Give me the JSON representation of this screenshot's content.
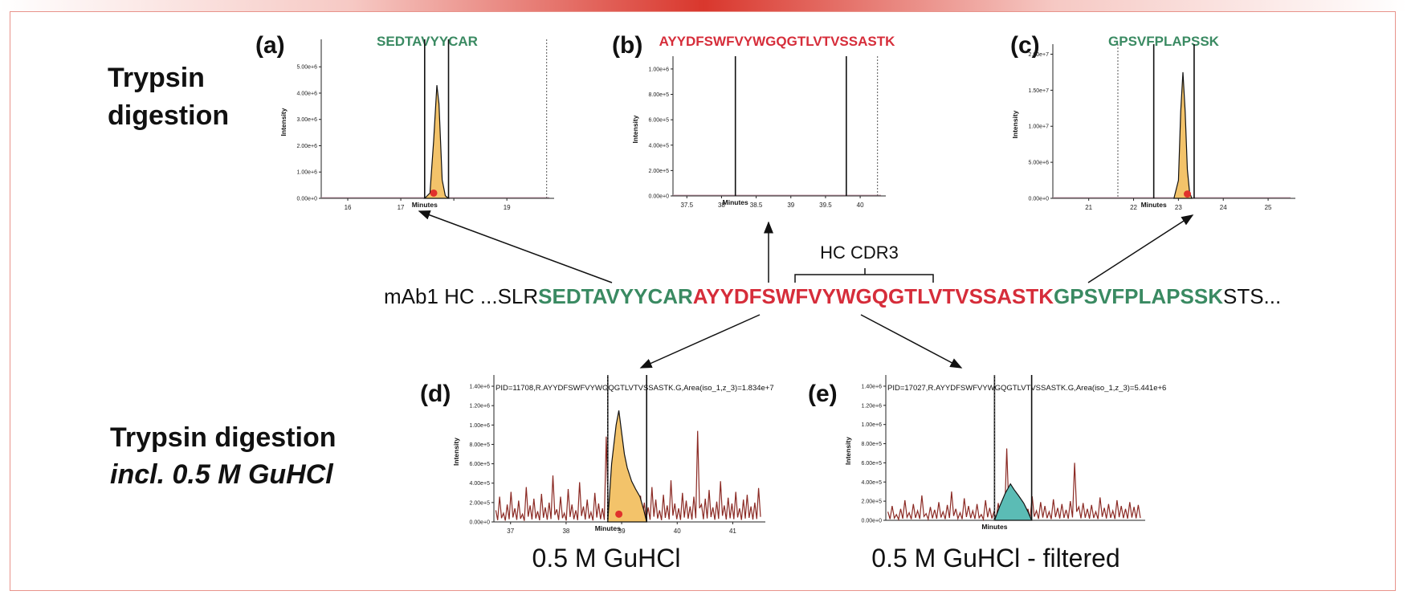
{
  "colors": {
    "green": "#3a8a62",
    "red": "#d62d3a",
    "orange_fill": "#f3c36a",
    "teal_fill": "#5bbcb5",
    "noise": "#8b2a24",
    "frame": "#e8938b"
  },
  "sections": {
    "top_title": [
      "Trypsin",
      "digestion"
    ],
    "bottom_title": "Trypsin digestion",
    "bottom_subtitle": "incl. 0.5 M GuHCl"
  },
  "sequence": {
    "prefix": "mAb1 HC ...SLR",
    "seg1": "SEDTAVYYCAR",
    "seg2": "AYYDFSWFVYWGQGTLVTVSSASTK",
    "seg3": "GPSVFPLAPSSK",
    "suffix": "STS...",
    "cdr_label": "HC CDR3"
  },
  "chart_data": [
    {
      "id": "a",
      "panel_label": "(a)",
      "type": "line",
      "title": "SEDTAVYYCAR",
      "title_color": "#3a8a62",
      "xlabel": "Minutes",
      "ylabel": "Intensity",
      "xlim": [
        15.5,
        19.8
      ],
      "ylim": [
        0,
        5800000
      ],
      "x_ticks": [
        16,
        17,
        18,
        19
      ],
      "x_tick_labels": [
        "16",
        "17",
        "",
        "19"
      ],
      "y_ticks": [
        0,
        1000000,
        2000000,
        3000000,
        4000000,
        5000000
      ],
      "y_tick_labels": [
        "0.00e+0",
        "1.00e+6",
        "2.00e+6",
        "3.00e+6",
        "4.00e+6",
        "5.00e+6"
      ],
      "integration_bounds": [
        17.45,
        17.9
      ],
      "dotted_lines": [
        19.75
      ],
      "peak": {
        "x": [
          17.45,
          17.55,
          17.62,
          17.68,
          17.72,
          17.78,
          17.84,
          17.9
        ],
        "y": [
          0,
          200000,
          2200000,
          4300000,
          3600000,
          700000,
          100000,
          0
        ]
      },
      "apex_marker": {
        "x": 17.62,
        "y": 200000
      },
      "noise": null
    },
    {
      "id": "b",
      "panel_label": "(b)",
      "type": "line",
      "title": "AYYDFSWFVYWGQGTLVTVSSASTK",
      "title_color": "#d62d3a",
      "xlabel": "Minutes",
      "ylabel": "Intensity",
      "xlim": [
        37.3,
        40.3
      ],
      "ylim": [
        0,
        1050000
      ],
      "x_ticks": [
        37.5,
        38,
        38.5,
        39,
        39.5,
        40
      ],
      "x_tick_labels": [
        "37.5",
        "38",
        "38.5",
        "39",
        "39.5",
        "40"
      ],
      "y_ticks": [
        0,
        200000,
        400000,
        600000,
        800000,
        1000000
      ],
      "y_tick_labels": [
        "0.00e+0",
        "2.00e+5",
        "4.00e+5",
        "6.00e+5",
        "8.00e+5",
        "1.00e+6"
      ],
      "integration_bounds": [
        38.2,
        39.8
      ],
      "dotted_lines": [
        40.25
      ],
      "peak": null,
      "apex_marker": null,
      "noise": null
    },
    {
      "id": "c",
      "panel_label": "(c)",
      "type": "line",
      "title": "GPSVFPLAPSSK",
      "title_color": "#3a8a62",
      "xlabel": "Minutes",
      "ylabel": "Intensity",
      "xlim": [
        20.2,
        25.5
      ],
      "ylim": [
        0,
        20500000
      ],
      "x_ticks": [
        21,
        22,
        23,
        24,
        25
      ],
      "x_tick_labels": [
        "21",
        "22",
        "23",
        "24",
        "25"
      ],
      "y_ticks": [
        0,
        5000000,
        10000000,
        15000000,
        20000000
      ],
      "y_tick_labels": [
        "0.00e+0",
        "5.00e+6",
        "1.00e+7",
        "1.50e+7",
        "2.00e+7"
      ],
      "integration_bounds": [
        22.45,
        23.35
      ],
      "dotted_lines": [
        21.65
      ],
      "peak": {
        "x": [
          22.9,
          23.0,
          23.05,
          23.1,
          23.15,
          23.2,
          23.25,
          23.3
        ],
        "y": [
          0,
          2500000,
          12000000,
          17500000,
          12000000,
          4000000,
          800000,
          0
        ]
      },
      "apex_marker": {
        "x": 23.2,
        "y": 600000
      },
      "noise": null
    },
    {
      "id": "d",
      "panel_label": "(d)",
      "type": "line",
      "title": "",
      "annotation": "PID=11708,R.AYYDFSWFVYWGQGTLVTVSSASTK.G,Area(iso_1,z_3)=1.834e+7",
      "xlabel": "Minutes",
      "ylabel": "Intensity",
      "xlim": [
        36.7,
        41.5
      ],
      "ylim": [
        0,
        1450000
      ],
      "x_ticks": [
        37,
        38,
        39,
        40,
        41
      ],
      "x_tick_labels": [
        "37",
        "38",
        "39",
        "40",
        "41"
      ],
      "y_ticks": [
        0,
        200000,
        400000,
        600000,
        800000,
        1000000,
        1200000,
        1400000
      ],
      "y_tick_labels": [
        "0.00e+0",
        "2.00e+5",
        "4.00e+5",
        "6.00e+5",
        "8.00e+5",
        "1.00e+6",
        "1.20e+6",
        "1.40e+6"
      ],
      "integration_bounds": [
        38.75,
        39.45
      ],
      "dotted_lines": [
        38.75
      ],
      "fill_color": "#f3c36a",
      "peak": {
        "x": [
          38.75,
          38.82,
          38.9,
          38.95,
          39.0,
          39.05,
          39.1,
          39.18,
          39.25,
          39.33,
          39.4,
          39.45
        ],
        "y": [
          0,
          600000,
          1000000,
          1150000,
          920000,
          700000,
          560000,
          420000,
          340000,
          260000,
          120000,
          0
        ]
      },
      "apex_marker": {
        "x": 38.95,
        "y": 80000
      },
      "noise": [
        120000,
        260000,
        90000,
        180000,
        310000,
        140000,
        220000,
        80000,
        360000,
        170000,
        240000,
        110000,
        290000,
        150000,
        200000,
        480000,
        130000,
        260000,
        90000,
        340000,
        180000,
        120000,
        410000,
        160000,
        230000,
        100000,
        300000,
        190000,
        140000,
        880000,
        170000,
        250000,
        120000,
        380000,
        210000,
        160000,
        320000,
        130000,
        270000,
        200000,
        150000,
        360000,
        230000,
        120000,
        280000,
        170000,
        430000,
        190000,
        140000,
        300000,
        220000,
        160000,
        260000,
        940000,
        180000,
        240000,
        330000,
        150000,
        210000,
        420000,
        170000,
        250000,
        190000,
        310000,
        140000,
        230000,
        280000,
        160000,
        200000,
        350000
      ]
    },
    {
      "id": "e",
      "panel_label": "(e)",
      "type": "line",
      "title": "",
      "annotation": "PID=17027,R.AYYDFSWFVYWGQGTLVTVSSASTK.G,Area(iso_1,z_3)=5.441e+6",
      "xlabel": "Minutes",
      "ylabel": "Intensity",
      "xlim": [
        36.7,
        41.5
      ],
      "ylim": [
        0,
        1450000
      ],
      "x_ticks": [],
      "x_tick_labels": [],
      "y_ticks": [
        0,
        200000,
        400000,
        600000,
        800000,
        1000000,
        1200000,
        1400000
      ],
      "y_tick_labels": [
        "0.00e+0",
        "2.00e+5",
        "4.00e+5",
        "6.00e+5",
        "8.00e+5",
        "1.00e+6",
        "1.20e+6",
        "1.40e+6"
      ],
      "integration_bounds": [
        38.75,
        39.45
      ],
      "dotted_lines": [
        38.75
      ],
      "fill_color": "#5bbcb5",
      "peak": {
        "x": [
          38.75,
          38.85,
          38.95,
          39.05,
          39.12,
          39.2,
          39.3,
          39.38,
          39.45
        ],
        "y": [
          0,
          150000,
          280000,
          380000,
          320000,
          260000,
          180000,
          90000,
          0
        ]
      },
      "apex_marker": null,
      "noise": [
        90000,
        150000,
        60000,
        120000,
        210000,
        80000,
        170000,
        100000,
        260000,
        70000,
        140000,
        110000,
        190000,
        90000,
        160000,
        300000,
        120000,
        80000,
        230000,
        150000,
        100000,
        170000,
        60000,
        210000,
        130000,
        90000,
        180000,
        110000,
        750000,
        140000,
        200000,
        80000,
        160000,
        120000,
        250000,
        100000,
        190000,
        150000,
        90000,
        220000,
        130000,
        170000,
        110000,
        200000,
        600000,
        140000,
        180000,
        120000,
        160000,
        90000,
        240000,
        130000,
        170000,
        100000,
        210000,
        150000,
        120000,
        190000,
        140000,
        160000
      ]
    }
  ],
  "captions": {
    "d": "0.5 M GuHCl",
    "e": "0.5 M GuHCl - filtered"
  }
}
